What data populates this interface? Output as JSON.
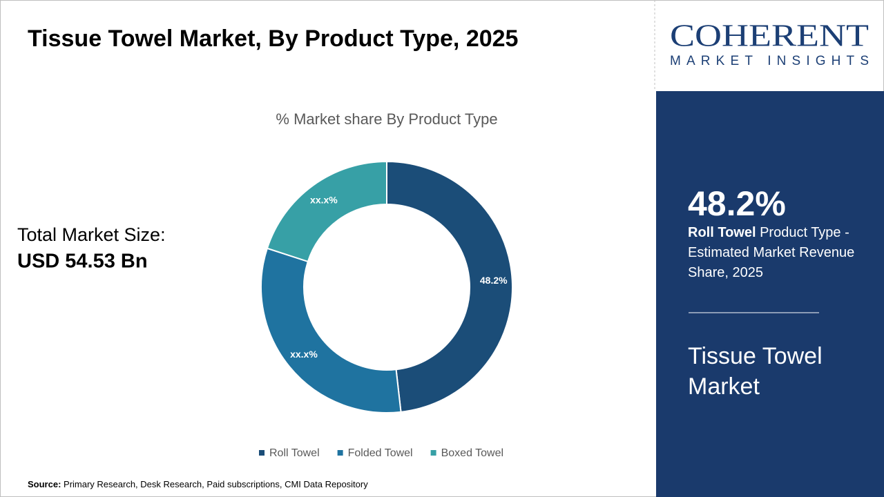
{
  "chart_data": {
    "type": "donut",
    "title": "Tissue Towel Market, By Product Type, 2025",
    "subtitle": "% Market share By Product Type",
    "categories": [
      "Roll Towel",
      "Folded Towel",
      "Boxed Towel"
    ],
    "values": [
      48.2,
      31.8,
      20.0
    ],
    "value_labels": [
      "48.2%",
      "xx.x%",
      "xx.x%"
    ],
    "colors": [
      "#1b4d78",
      "#1f73a0",
      "#37a0a6"
    ]
  },
  "market_size": {
    "label": "Total Market Size:",
    "value": "USD 54.53 Bn"
  },
  "logo": {
    "name": "COHERENT",
    "tagline": "MARKET INSIGHTS"
  },
  "sidebar": {
    "headline": "48.2%",
    "highlight": "Roll Towel",
    "description": " Product Type - Estimated Market Revenue Share, 2025",
    "market_name": "Tissue Towel Market"
  },
  "source": {
    "label": "Source:",
    "text": " Primary Research, Desk Research, Paid subscriptions, CMI Data Repository"
  }
}
